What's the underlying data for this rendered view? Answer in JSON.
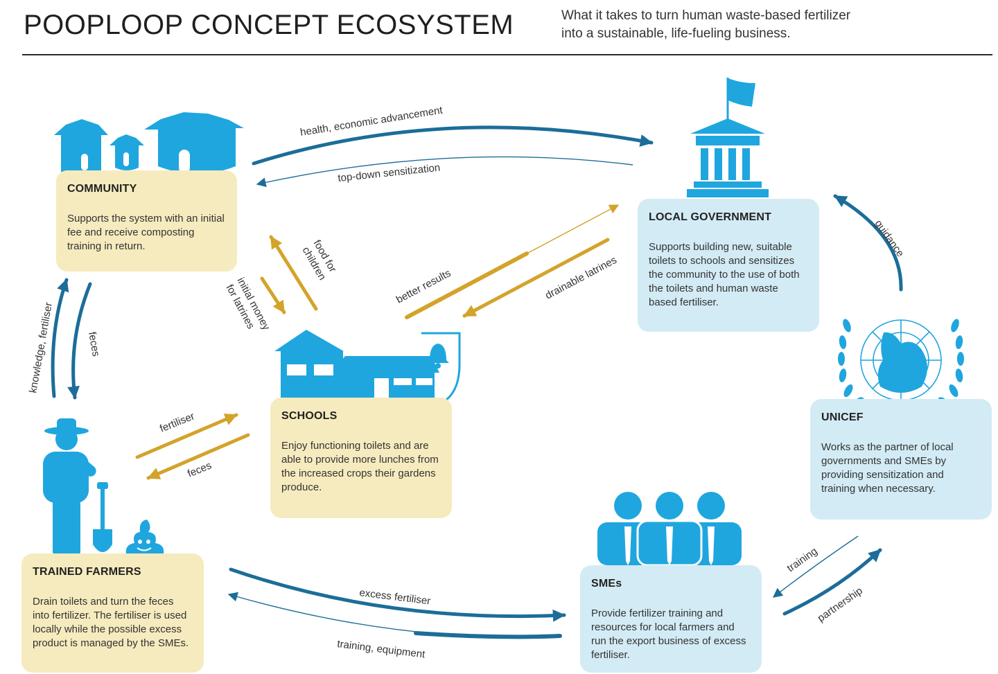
{
  "header": {
    "title": "POOPLOOP CONCEPT ECOSYSTEM",
    "subtitle_line1": "What it takes to turn human waste-based fertilizer",
    "subtitle_line2": "into a sustainable, life-fueling business."
  },
  "nodes": {
    "community": {
      "title": "COMMUNITY",
      "desc": "Supports the system with an initial fee and receive composting training in return."
    },
    "local_government": {
      "title": "LOCAL GOVERNMENT",
      "desc": "Supports building new, suitable toilets to schools and sensitizes the community to the use of both the toilets and human waste based fertiliser."
    },
    "schools": {
      "title": "SCHOOLS",
      "desc": "Enjoy functioning toilets and are able to provide more lunches from the increased crops their gardens produce."
    },
    "unicef": {
      "title": "UNICEF",
      "desc": "Works as the partner of local governments and SMEs by providing sensitization and training when necessary."
    },
    "trained_farmers": {
      "title": "TRAINED FARMERS",
      "desc": "Drain toilets and turn the feces into fertilizer. The fertiliser is used locally while the possible excess product is managed by the SMEs."
    },
    "smes": {
      "title": "SMEs",
      "desc": "Provide fertilizer training and resources for local farmers and run the export business of excess fertiliser."
    }
  },
  "flows": {
    "health": "health, economic advancement",
    "top_down": "top-down sensitization",
    "food_l1": "food for",
    "food_l2": "children",
    "money_l1": "initial money",
    "money_l2": "for latrines",
    "better_results": "better results",
    "drainable": "drainable latrines",
    "guidance": "guidance",
    "knowledge": "knowledge, fertiliser",
    "feces_comm": "feces",
    "fertiliser_school": "fertiliser",
    "feces_school": "feces",
    "excess_fertiliser": "excess fertiliser",
    "training_equipment": "training, equipment",
    "training": "training",
    "partnership": "partnership"
  },
  "colors": {
    "blue": "#1fa6de",
    "dark_blue": "#1c6d99",
    "gold": "#d3a32a",
    "yellow_box": "#f6ebbe",
    "blue_box": "#d3ebf4"
  },
  "icons": [
    "huts-icon",
    "government-building-icon",
    "flag-icon",
    "school-icon",
    "bell-icon",
    "un-emblem-icon",
    "farmer-icon",
    "shovel-icon",
    "poop-icon",
    "business-people-icon"
  ]
}
